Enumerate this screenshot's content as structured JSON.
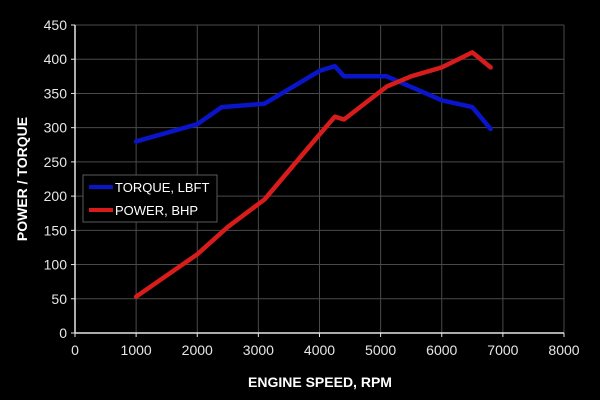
{
  "chart_data": {
    "type": "line",
    "title": "",
    "xlabel": "ENGINE SPEED, RPM",
    "ylabel": "POWER / TORQUE",
    "xlim": [
      0,
      8000
    ],
    "ylim": [
      0,
      450
    ],
    "x_ticks": [
      0,
      1000,
      2000,
      3000,
      4000,
      5000,
      6000,
      7000,
      8000
    ],
    "y_ticks": [
      0,
      50,
      100,
      150,
      200,
      250,
      300,
      350,
      400,
      450
    ],
    "grid": true,
    "legend_position": "left-middle inside plot",
    "series": [
      {
        "name": "TORQUE, LBFT",
        "color": "#0a14c8",
        "points": [
          [
            1000,
            280
          ],
          [
            2000,
            305
          ],
          [
            2400,
            330
          ],
          [
            3100,
            335
          ],
          [
            4000,
            383
          ],
          [
            4250,
            390
          ],
          [
            4400,
            375
          ],
          [
            5100,
            375
          ],
          [
            6000,
            340
          ],
          [
            6500,
            330
          ],
          [
            6800,
            298
          ]
        ]
      },
      {
        "name": "POWER, BHP",
        "color": "#d81c1c",
        "points": [
          [
            1000,
            53
          ],
          [
            2000,
            115
          ],
          [
            2500,
            155
          ],
          [
            3100,
            195
          ],
          [
            4000,
            290
          ],
          [
            4250,
            316
          ],
          [
            4400,
            312
          ],
          [
            5100,
            360
          ],
          [
            5500,
            375
          ],
          [
            6000,
            388
          ],
          [
            6500,
            410
          ],
          [
            6800,
            388
          ]
        ]
      }
    ]
  },
  "colors": {
    "background": "#000000",
    "grid": "#4a4a4a",
    "axis": "#e6e6e6"
  }
}
